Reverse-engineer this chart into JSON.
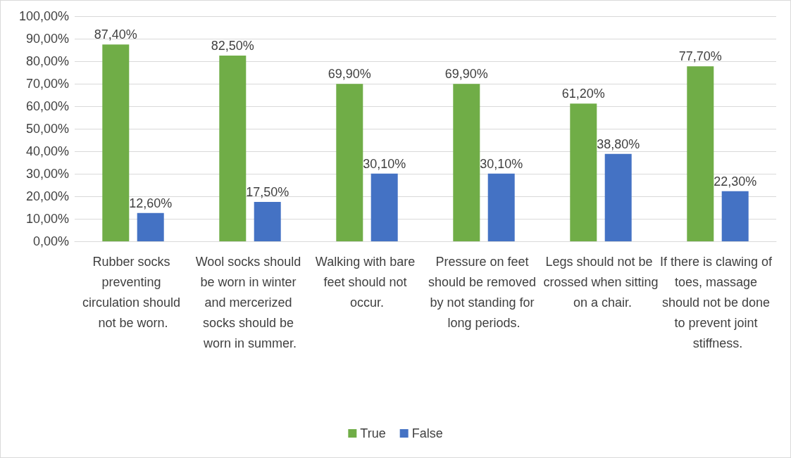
{
  "chart_data": {
    "type": "bar",
    "categories": [
      "Rubber socks preventing circulation should not be worn.",
      "Wool socks should be worn in winter and mercerized socks should be worn in summer.",
      "Walking with bare feet should not occur.",
      "Pressure on feet should be removed by not standing for long periods.",
      "Legs should not be crossed when sitting on a chair.",
      "If there is clawing of toes, massage should not be done to prevent joint stiffness."
    ],
    "series": [
      {
        "name": "True",
        "color": "#70ad47",
        "values": [
          87.4,
          82.5,
          69.9,
          69.9,
          61.2,
          77.7
        ],
        "value_labels": [
          "87,40%",
          "82,50%",
          "69,90%",
          "69,90%",
          "61,20%",
          "77,70%"
        ]
      },
      {
        "name": "False",
        "color": "#4472c4",
        "values": [
          12.6,
          17.5,
          30.1,
          30.1,
          38.8,
          22.3
        ],
        "value_labels": [
          "12,60%",
          "17,50%",
          "30,10%",
          "30,10%",
          "38,80%",
          "22,30%"
        ]
      }
    ],
    "ylim": [
      0,
      100
    ],
    "yticks": [
      {
        "value": 0,
        "label": "0,00%"
      },
      {
        "value": 10,
        "label": "10,00%"
      },
      {
        "value": 20,
        "label": "20,00%"
      },
      {
        "value": 30,
        "label": "30,00%"
      },
      {
        "value": 40,
        "label": "40,00%"
      },
      {
        "value": 50,
        "label": "50,00%"
      },
      {
        "value": 60,
        "label": "60,00%"
      },
      {
        "value": 70,
        "label": "70,00%"
      },
      {
        "value": 80,
        "label": "80,00%"
      },
      {
        "value": 90,
        "label": "90,00%"
      },
      {
        "value": 100,
        "label": "100,00%"
      }
    ],
    "grid": "y",
    "legend": "bottom"
  }
}
